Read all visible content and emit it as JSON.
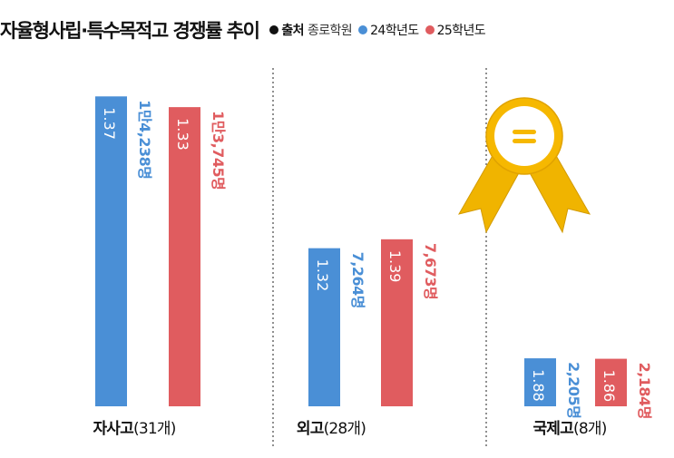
{
  "title": "자율형사립·특수목적고 경쟁률 추이",
  "legend": {
    "source_label": "출처",
    "source_value": "종로학원",
    "source_color": "#111111",
    "items": [
      {
        "label": "24학년도",
        "color": "#4a8fd6"
      },
      {
        "label": "25학년도",
        "color": "#e05c5f"
      }
    ]
  },
  "chart_data": {
    "type": "bar",
    "title": "자율형사립·특수목적고 경쟁률 추이",
    "categories": [
      "자사고(31개)",
      "외고(28개)",
      "국제고(8개)"
    ],
    "category_parts": [
      {
        "name": "자사고",
        "count": "(31개)"
      },
      {
        "name": "외고",
        "count": "(28개)"
      },
      {
        "name": "국제고",
        "count": "(8개)"
      }
    ],
    "unit": "명",
    "series": [
      {
        "name": "24학년도",
        "color": "#4a8fd6",
        "values": [
          14238,
          7264,
          2205
        ],
        "value_labels": [
          "1만4,238명",
          "7,264명",
          "2,205명"
        ],
        "ratio_labels": [
          "1.37",
          "1.32",
          "1.88"
        ]
      },
      {
        "name": "25학년도",
        "color": "#e05c5f",
        "values": [
          13745,
          7673,
          2184
        ],
        "value_labels": [
          "1만3,745명",
          "7,673명",
          "2,184명"
        ],
        "ratio_labels": [
          "1.33",
          "1.39",
          "1.86"
        ]
      }
    ],
    "ylim": [
      0,
      16000
    ],
    "grid": false,
    "legend_position": "top-right"
  }
}
